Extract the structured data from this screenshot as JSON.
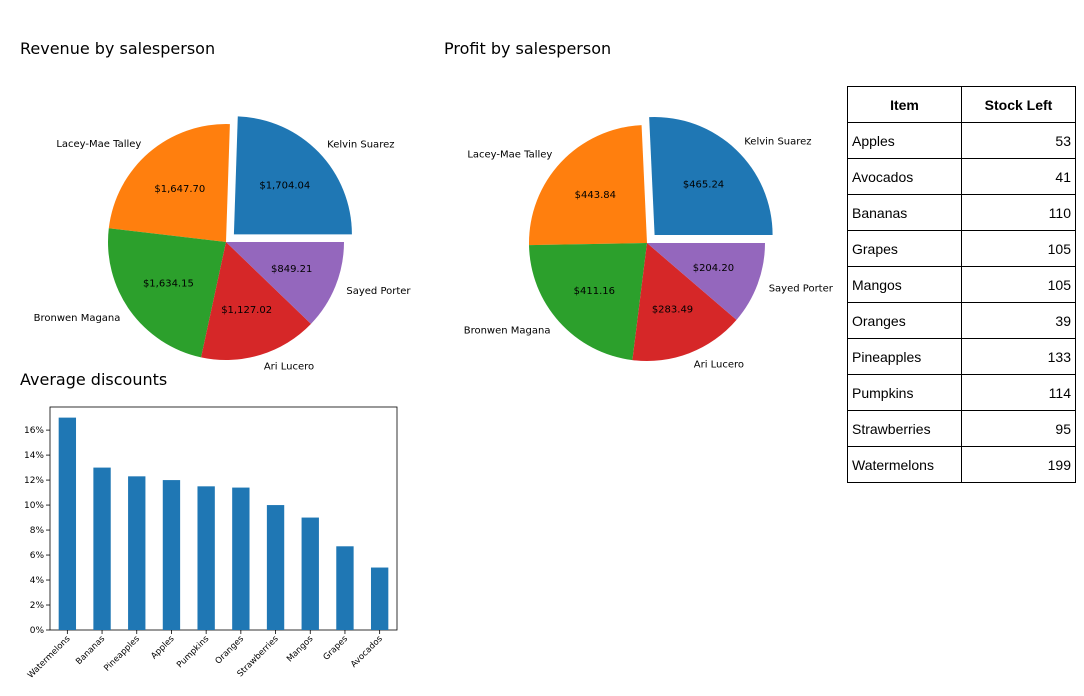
{
  "chart_data": [
    {
      "type": "pie",
      "title": "Revenue by salesperson",
      "slices": [
        {
          "label": "Kelvin Suarez",
          "value": 1704.04,
          "value_label": "$1,704.04",
          "color": "#1f77b4",
          "exploded": true
        },
        {
          "label": "Lacey-Mae Talley",
          "value": 1647.7,
          "value_label": "$1,647.70",
          "color": "#ff7f0e",
          "exploded": false
        },
        {
          "label": "Bronwen Magana",
          "value": 1634.15,
          "value_label": "$1,634.15",
          "color": "#2ca02c",
          "exploded": false
        },
        {
          "label": "Ari Lucero",
          "value": 1127.02,
          "value_label": "$1,127.02",
          "color": "#d62728",
          "exploded": false
        },
        {
          "label": "Sayed Porter",
          "value": 849.21,
          "value_label": "$849.21",
          "color": "#9467bd",
          "exploded": false
        }
      ]
    },
    {
      "type": "pie",
      "title": "Profit by salesperson",
      "slices": [
        {
          "label": "Kelvin Suarez",
          "value": 465.24,
          "value_label": "$465.24",
          "color": "#1f77b4",
          "exploded": true
        },
        {
          "label": "Lacey-Mae Talley",
          "value": 443.84,
          "value_label": "$443.84",
          "color": "#ff7f0e",
          "exploded": false
        },
        {
          "label": "Bronwen Magana",
          "value": 411.16,
          "value_label": "$411.16",
          "color": "#2ca02c",
          "exploded": false
        },
        {
          "label": "Ari Lucero",
          "value": 283.49,
          "value_label": "$283.49",
          "color": "#d62728",
          "exploded": false
        },
        {
          "label": "Sayed Porter",
          "value": 204.2,
          "value_label": "$204.20",
          "color": "#9467bd",
          "exploded": false
        }
      ]
    },
    {
      "type": "bar",
      "title": "Average discounts",
      "categories": [
        "Watermelons",
        "Bananas",
        "Pineapples",
        "Apples",
        "Pumpkins",
        "Oranges",
        "Strawberries",
        "Mangos",
        "Grapes",
        "Avocados"
      ],
      "values": [
        17.0,
        13.0,
        12.3,
        12.0,
        11.5,
        11.4,
        10.0,
        9.0,
        6.7,
        5.0
      ],
      "ylim": [
        0,
        17.85
      ],
      "yticks": [
        "0%",
        "2%",
        "4%",
        "6%",
        "8%",
        "10%",
        "12%",
        "14%",
        "16%"
      ],
      "color": "#1f77b4",
      "xlabel": "",
      "ylabel": ""
    },
    {
      "type": "table",
      "columns": [
        "Item",
        "Stock Left"
      ],
      "rows": [
        [
          "Apples",
          "53"
        ],
        [
          "Avocados",
          "41"
        ],
        [
          "Bananas",
          "110"
        ],
        [
          "Grapes",
          "105"
        ],
        [
          "Mangos",
          "105"
        ],
        [
          "Oranges",
          "39"
        ],
        [
          "Pineapples",
          "133"
        ],
        [
          "Pumpkins",
          "114"
        ],
        [
          "Strawberries",
          "95"
        ],
        [
          "Watermelons",
          "199"
        ]
      ]
    }
  ]
}
